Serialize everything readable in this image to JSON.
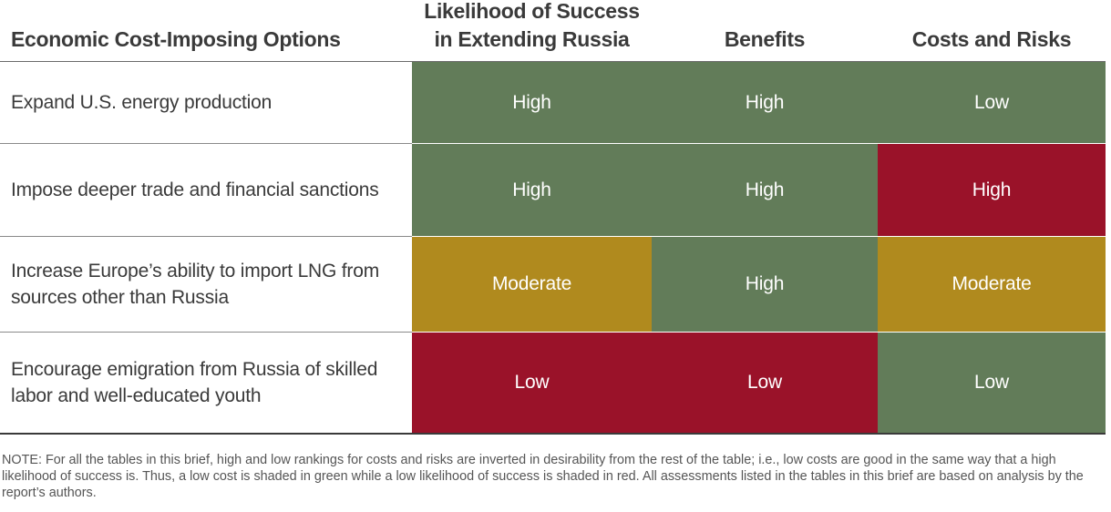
{
  "colors": {
    "high_good": "#627c59",
    "low_bad": "#9a1229",
    "moderate": "#b08a1e"
  },
  "headers": {
    "options": "Economic Cost-Imposing Options",
    "likelihood_line1": "Likelihood of Success",
    "likelihood_line2": "in Extending Russia",
    "benefits": "Benefits",
    "costs": "Costs and Risks"
  },
  "rows": [
    {
      "option": "Expand U.S. energy production",
      "likelihood": "High",
      "benefits": "High",
      "costs": "Low",
      "likelihood_color": "#627c59",
      "benefits_color": "#627c59",
      "costs_color": "#627c59"
    },
    {
      "option": "Impose deeper trade and financial sanctions",
      "likelihood": "High",
      "benefits": "High",
      "costs": "High",
      "likelihood_color": "#627c59",
      "benefits_color": "#627c59",
      "costs_color": "#9a1229"
    },
    {
      "option": "Increase Europe’s ability to import LNG from sources other than Russia",
      "likelihood": "Moderate",
      "benefits": "High",
      "costs": "Moderate",
      "likelihood_color": "#b08a1e",
      "benefits_color": "#627c59",
      "costs_color": "#b08a1e"
    },
    {
      "option": "Encourage emigration from Russia of skilled labor and well-educated youth",
      "likelihood": "Low",
      "benefits": "Low",
      "costs": "Low",
      "likelihood_color": "#9a1229",
      "benefits_color": "#9a1229",
      "costs_color": "#627c59"
    }
  ],
  "note": "NOTE: For all the tables in this brief, high and low rankings for costs and risks are inverted in desirability from the rest of the table; i.e., low costs are good in the same way that a high likelihood of success is. Thus, a low cost is shaded in green while a low likelihood of success is shaded in red. All assessments listed in the tables in this brief are based on analysis by the report’s authors."
}
